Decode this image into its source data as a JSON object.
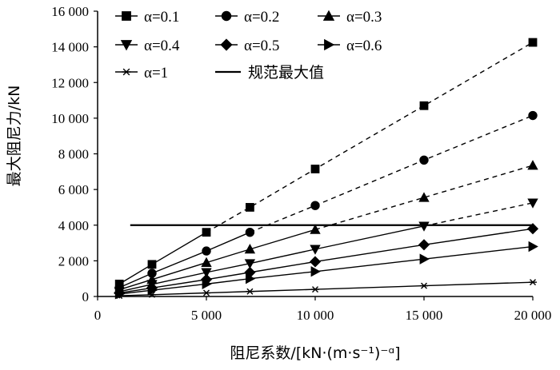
{
  "chart_data": {
    "type": "line",
    "title": "",
    "xlabel": "阻尼系数/[kN·(m·s⁻¹)⁻ᵅ]",
    "ylabel": "最大阻尼力/kN",
    "xlim": [
      0,
      20000
    ],
    "ylim": [
      0,
      16000
    ],
    "x_ticks": [
      0,
      5000,
      10000,
      15000,
      20000
    ],
    "x_tick_labels": [
      "0",
      "5 000",
      "10 000",
      "15 000",
      "20 000"
    ],
    "y_ticks": [
      0,
      2000,
      4000,
      6000,
      8000,
      10000,
      12000,
      14000,
      16000
    ],
    "y_tick_labels": [
      "0",
      "2 000",
      "4 000",
      "6 000",
      "8 000",
      "10 000",
      "12 000",
      "14 000",
      "16 000"
    ],
    "grid": false,
    "legend_position": "top-left",
    "series": [
      {
        "name": "α=0.1",
        "marker": "square",
        "x": [
          1000,
          2500,
          5000,
          7000,
          10000,
          15000,
          20000
        ],
        "values": [
          700,
          1800,
          3600,
          5000,
          7150,
          10700,
          14250
        ],
        "solid_up_to_index": 2
      },
      {
        "name": "α=0.2",
        "marker": "circle",
        "x": [
          1000,
          2500,
          5000,
          7000,
          10000,
          15000,
          20000
        ],
        "values": [
          500,
          1300,
          2550,
          3600,
          5100,
          7650,
          10150
        ],
        "solid_up_to_index": 3
      },
      {
        "name": "α=0.3",
        "marker": "triangle-up",
        "x": [
          1000,
          2500,
          5000,
          7000,
          10000,
          15000,
          20000
        ],
        "values": [
          380,
          950,
          1900,
          2650,
          3750,
          5550,
          7350
        ],
        "solid_up_to_index": 4
      },
      {
        "name": "α=0.4",
        "marker": "triangle-down",
        "x": [
          1000,
          2500,
          5000,
          7000,
          10000,
          15000,
          20000
        ],
        "values": [
          270,
          680,
          1350,
          1850,
          2650,
          3950,
          5250
        ],
        "solid_up_to_index": 5
      },
      {
        "name": "α=0.5",
        "marker": "diamond",
        "x": [
          1000,
          2500,
          5000,
          7000,
          10000,
          15000,
          20000
        ],
        "values": [
          200,
          480,
          950,
          1350,
          1950,
          2900,
          3800
        ],
        "solid_up_to_index": 6
      },
      {
        "name": "α=0.6",
        "marker": "triangle-right",
        "x": [
          1000,
          2500,
          5000,
          7000,
          10000,
          15000,
          20000
        ],
        "values": [
          140,
          350,
          700,
          1000,
          1400,
          2100,
          2800
        ],
        "solid_up_to_index": 6
      },
      {
        "name": "α=1",
        "marker": "asterisk",
        "x": [
          1000,
          2500,
          5000,
          7000,
          10000,
          15000,
          20000
        ],
        "values": [
          40,
          100,
          200,
          280,
          400,
          600,
          800
        ],
        "solid_up_to_index": 6
      }
    ],
    "reference_line": {
      "name": "规范最大值",
      "y": 4000,
      "x_range": [
        1500,
        20000
      ]
    }
  }
}
